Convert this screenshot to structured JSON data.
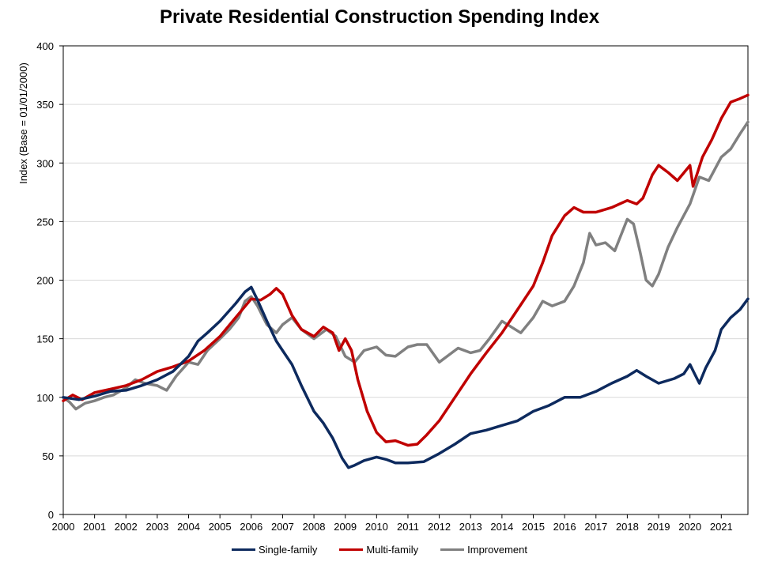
{
  "chart_data": {
    "type": "line",
    "title": "Private Residential Construction Spending Index",
    "xlabel": "",
    "ylabel": "Index (Base = 01/01/2000)",
    "xlim": [
      2000,
      2021.85
    ],
    "ylim": [
      0,
      400
    ],
    "yticks": [
      0,
      50,
      100,
      150,
      200,
      250,
      300,
      350,
      400
    ],
    "xticks": [
      "2000",
      "2001",
      "2002",
      "2003",
      "2004",
      "2005",
      "2006",
      "2007",
      "2008",
      "2009",
      "2010",
      "2011",
      "2012",
      "2013",
      "2014",
      "2015",
      "2016",
      "2017",
      "2018",
      "2019",
      "2020",
      "2021"
    ],
    "grid": true,
    "legend_position": "bottom",
    "series": [
      {
        "name": "Single-family",
        "color": "#0D2A5E",
        "points": [
          [
            2000.0,
            100
          ],
          [
            2000.5,
            98
          ],
          [
            2001.0,
            101
          ],
          [
            2001.5,
            105
          ],
          [
            2002.0,
            106
          ],
          [
            2002.5,
            110
          ],
          [
            2003.0,
            115
          ],
          [
            2003.5,
            122
          ],
          [
            2004.0,
            135
          ],
          [
            2004.3,
            148
          ],
          [
            2004.6,
            155
          ],
          [
            2005.0,
            165
          ],
          [
            2005.5,
            180
          ],
          [
            2005.8,
            190
          ],
          [
            2006.0,
            194
          ],
          [
            2006.2,
            183
          ],
          [
            2006.5,
            165
          ],
          [
            2006.8,
            148
          ],
          [
            2007.0,
            140
          ],
          [
            2007.3,
            128
          ],
          [
            2007.6,
            110
          ],
          [
            2008.0,
            88
          ],
          [
            2008.3,
            78
          ],
          [
            2008.6,
            65
          ],
          [
            2008.9,
            48
          ],
          [
            2009.1,
            40
          ],
          [
            2009.3,
            42
          ],
          [
            2009.6,
            46
          ],
          [
            2010.0,
            49
          ],
          [
            2010.3,
            47
          ],
          [
            2010.6,
            44
          ],
          [
            2011.0,
            44
          ],
          [
            2011.5,
            45
          ],
          [
            2012.0,
            52
          ],
          [
            2012.5,
            60
          ],
          [
            2013.0,
            69
          ],
          [
            2013.5,
            72
          ],
          [
            2014.0,
            76
          ],
          [
            2014.5,
            80
          ],
          [
            2015.0,
            88
          ],
          [
            2015.5,
            93
          ],
          [
            2016.0,
            100
          ],
          [
            2016.5,
            100
          ],
          [
            2017.0,
            105
          ],
          [
            2017.5,
            112
          ],
          [
            2018.0,
            118
          ],
          [
            2018.3,
            123
          ],
          [
            2018.6,
            118
          ],
          [
            2019.0,
            112
          ],
          [
            2019.5,
            116
          ],
          [
            2019.8,
            120
          ],
          [
            2020.0,
            128
          ],
          [
            2020.15,
            120
          ],
          [
            2020.3,
            112
          ],
          [
            2020.5,
            125
          ],
          [
            2020.8,
            140
          ],
          [
            2021.0,
            158
          ],
          [
            2021.3,
            168
          ],
          [
            2021.6,
            175
          ],
          [
            2021.85,
            184
          ]
        ]
      },
      {
        "name": "Multi-family",
        "color": "#C00000",
        "points": [
          [
            2000.0,
            97
          ],
          [
            2000.3,
            102
          ],
          [
            2000.6,
            98
          ],
          [
            2001.0,
            104
          ],
          [
            2001.5,
            107
          ],
          [
            2002.0,
            110
          ],
          [
            2002.5,
            115
          ],
          [
            2003.0,
            122
          ],
          [
            2003.5,
            126
          ],
          [
            2004.0,
            131
          ],
          [
            2004.5,
            140
          ],
          [
            2005.0,
            152
          ],
          [
            2005.5,
            168
          ],
          [
            2006.0,
            184
          ],
          [
            2006.3,
            183
          ],
          [
            2006.6,
            188
          ],
          [
            2006.8,
            193
          ],
          [
            2007.0,
            188
          ],
          [
            2007.3,
            170
          ],
          [
            2007.6,
            158
          ],
          [
            2008.0,
            152
          ],
          [
            2008.3,
            160
          ],
          [
            2008.6,
            155
          ],
          [
            2008.8,
            140
          ],
          [
            2009.0,
            150
          ],
          [
            2009.2,
            140
          ],
          [
            2009.4,
            115
          ],
          [
            2009.7,
            88
          ],
          [
            2010.0,
            70
          ],
          [
            2010.3,
            62
          ],
          [
            2010.6,
            63
          ],
          [
            2011.0,
            59
          ],
          [
            2011.3,
            60
          ],
          [
            2011.6,
            68
          ],
          [
            2012.0,
            80
          ],
          [
            2012.5,
            100
          ],
          [
            2013.0,
            120
          ],
          [
            2013.5,
            138
          ],
          [
            2014.0,
            155
          ],
          [
            2014.5,
            175
          ],
          [
            2015.0,
            195
          ],
          [
            2015.3,
            215
          ],
          [
            2015.6,
            238
          ],
          [
            2016.0,
            255
          ],
          [
            2016.3,
            262
          ],
          [
            2016.6,
            258
          ],
          [
            2017.0,
            258
          ],
          [
            2017.5,
            262
          ],
          [
            2018.0,
            268
          ],
          [
            2018.3,
            265
          ],
          [
            2018.5,
            270
          ],
          [
            2018.8,
            290
          ],
          [
            2019.0,
            298
          ],
          [
            2019.3,
            292
          ],
          [
            2019.6,
            285
          ],
          [
            2020.0,
            298
          ],
          [
            2020.1,
            280
          ],
          [
            2020.4,
            305
          ],
          [
            2020.7,
            320
          ],
          [
            2021.0,
            338
          ],
          [
            2021.3,
            352
          ],
          [
            2021.6,
            355
          ],
          [
            2021.85,
            358
          ]
        ]
      },
      {
        "name": "Improvement",
        "color": "#808080",
        "points": [
          [
            2000.0,
            100
          ],
          [
            2000.2,
            96
          ],
          [
            2000.4,
            90
          ],
          [
            2000.7,
            95
          ],
          [
            2001.0,
            97
          ],
          [
            2001.3,
            100
          ],
          [
            2001.6,
            102
          ],
          [
            2002.0,
            108
          ],
          [
            2002.3,
            115
          ],
          [
            2002.6,
            112
          ],
          [
            2003.0,
            110
          ],
          [
            2003.3,
            106
          ],
          [
            2003.6,
            118
          ],
          [
            2004.0,
            130
          ],
          [
            2004.3,
            128
          ],
          [
            2004.6,
            140
          ],
          [
            2005.0,
            150
          ],
          [
            2005.3,
            158
          ],
          [
            2005.6,
            168
          ],
          [
            2005.8,
            182
          ],
          [
            2006.0,
            186
          ],
          [
            2006.2,
            178
          ],
          [
            2006.5,
            162
          ],
          [
            2006.8,
            155
          ],
          [
            2007.0,
            162
          ],
          [
            2007.3,
            168
          ],
          [
            2007.6,
            158
          ],
          [
            2008.0,
            150
          ],
          [
            2008.4,
            158
          ],
          [
            2008.7,
            152
          ],
          [
            2009.0,
            135
          ],
          [
            2009.3,
            130
          ],
          [
            2009.6,
            140
          ],
          [
            2010.0,
            143
          ],
          [
            2010.3,
            136
          ],
          [
            2010.6,
            135
          ],
          [
            2011.0,
            143
          ],
          [
            2011.3,
            145
          ],
          [
            2011.6,
            145
          ],
          [
            2012.0,
            130
          ],
          [
            2012.3,
            136
          ],
          [
            2012.6,
            142
          ],
          [
            2013.0,
            138
          ],
          [
            2013.3,
            140
          ],
          [
            2013.6,
            150
          ],
          [
            2014.0,
            165
          ],
          [
            2014.3,
            160
          ],
          [
            2014.6,
            155
          ],
          [
            2015.0,
            168
          ],
          [
            2015.3,
            182
          ],
          [
            2015.6,
            178
          ],
          [
            2016.0,
            182
          ],
          [
            2016.3,
            195
          ],
          [
            2016.6,
            215
          ],
          [
            2016.8,
            240
          ],
          [
            2017.0,
            230
          ],
          [
            2017.3,
            232
          ],
          [
            2017.6,
            225
          ],
          [
            2018.0,
            252
          ],
          [
            2018.2,
            248
          ],
          [
            2018.4,
            225
          ],
          [
            2018.6,
            200
          ],
          [
            2018.8,
            195
          ],
          [
            2019.0,
            205
          ],
          [
            2019.3,
            228
          ],
          [
            2019.6,
            245
          ],
          [
            2020.0,
            265
          ],
          [
            2020.3,
            288
          ],
          [
            2020.6,
            285
          ],
          [
            2021.0,
            305
          ],
          [
            2021.3,
            312
          ],
          [
            2021.6,
            325
          ],
          [
            2021.85,
            335
          ]
        ]
      }
    ]
  }
}
